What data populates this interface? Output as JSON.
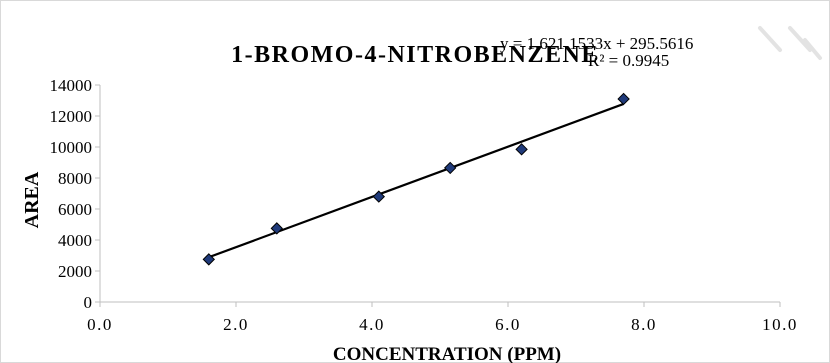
{
  "chart_data": {
    "type": "scatter",
    "title": "1-BROMO-4-NITROBENZENE",
    "xlabel": "CONCENTRATION (PPM)",
    "ylabel": "AREA",
    "xlim": [
      0,
      10
    ],
    "ylim": [
      0,
      14000
    ],
    "x_ticks": [
      "0.0",
      "2.0",
      "4.0",
      "6.0",
      "8.0",
      "10.0"
    ],
    "y_ticks": [
      "0",
      "2000",
      "4000",
      "6000",
      "8000",
      "10000",
      "12000",
      "14000"
    ],
    "points": [
      {
        "x": 1.6,
        "y": 2750
      },
      {
        "x": 2.6,
        "y": 4750
      },
      {
        "x": 4.1,
        "y": 6800
      },
      {
        "x": 5.15,
        "y": 8650
      },
      {
        "x": 6.2,
        "y": 9850
      },
      {
        "x": 7.7,
        "y": 13100
      }
    ],
    "trendline": {
      "slope": 1621.1533,
      "intercept": 295.5616,
      "x_range": [
        1.6,
        7.7
      ]
    },
    "equation": "y = 1,621.1533x + 295.5616",
    "r_squared": "R² = 0.9945",
    "grid": false,
    "colors": {
      "marker_fill": "#1f3a7a",
      "marker_stroke": "#000000",
      "trendline": "#000000",
      "axis": "#bfbfbf"
    }
  }
}
